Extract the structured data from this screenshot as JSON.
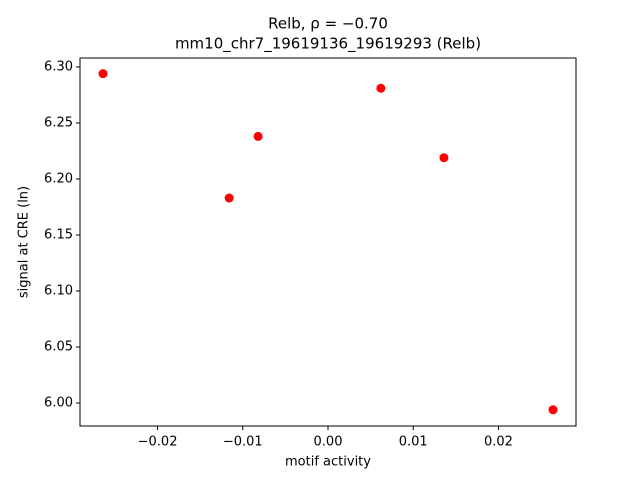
{
  "chart_data": {
    "type": "scatter",
    "title": "Relb, ρ = −0.70",
    "subtitle": "mm10_chr7_19619136_19619293 (Relb)",
    "x_label": "motif activity",
    "y_label": "signal at CRE (ln)",
    "color": "#ff0000",
    "x": [
      -0.0264,
      -0.0116,
      -0.0082,
      0.0062,
      0.0136,
      0.0264
    ],
    "values": [
      6.294,
      6.183,
      6.238,
      6.281,
      6.219,
      5.994
    ],
    "xlim": [
      -0.0291,
      0.0291
    ],
    "ylim": [
      5.9795,
      6.308
    ],
    "xticks": [
      {
        "value": -0.02,
        "label": "−0.02"
      },
      {
        "value": -0.01,
        "label": "−0.01"
      },
      {
        "value": 0,
        "label": "0.00"
      },
      {
        "value": 0.01,
        "label": "0.01"
      },
      {
        "value": 0.02,
        "label": "0.02"
      }
    ],
    "yticks": [
      {
        "value": 6,
        "label": "6.00"
      },
      {
        "value": 6.05,
        "label": "6.05"
      },
      {
        "value": 6.1,
        "label": "6.10"
      },
      {
        "value": 6.15,
        "label": "6.15"
      },
      {
        "value": 6.2,
        "label": "6.20"
      },
      {
        "value": 6.25,
        "label": "6.25"
      },
      {
        "value": 6.3,
        "label": "6.30"
      }
    ]
  }
}
